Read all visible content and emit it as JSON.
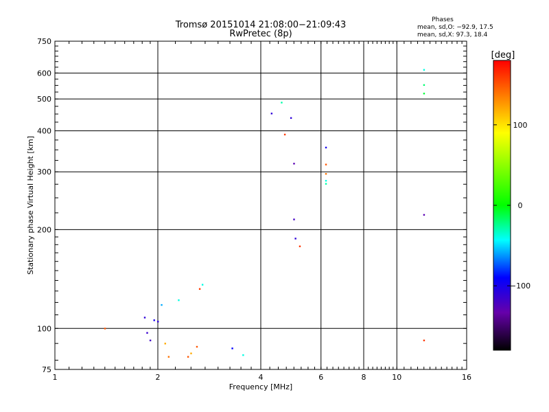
{
  "chart_data": {
    "type": "scatter",
    "title": "Tromsø 20151014 21:08:00−21:09:43",
    "subtitle": "RwPretec (8p)",
    "xlabel": "Frequency [MHz]",
    "ylabel": "Stationary phase Virtual Height [km]",
    "x_scale": "log",
    "y_scale": "log",
    "xlim": [
      1,
      16
    ],
    "ylim": [
      75,
      750
    ],
    "x_ticks": [
      "1",
      "2",
      "4",
      "6",
      "8",
      "10",
      "16"
    ],
    "y_ticks": [
      "75",
      "100",
      "200",
      "300",
      "400",
      "500",
      "600",
      "750"
    ],
    "grid": true,
    "stats_title": "Phases",
    "stats": [
      "mean, sd,O: −92.9, 17.5",
      "mean, sd,X:  97.3, 18.4"
    ],
    "colorbar": {
      "label": "[deg]",
      "range": [
        -180,
        180
      ],
      "ticks": [
        "100",
        "0",
        "−100"
      ],
      "tick_values": [
        100,
        0,
        -100
      ]
    },
    "points": [
      [
        1.83,
        108,
        -110
      ],
      [
        1.86,
        97,
        -115
      ],
      [
        1.9,
        92,
        -120
      ],
      [
        1.95,
        106,
        -100
      ],
      [
        2.0,
        105,
        -110
      ],
      [
        2.05,
        118,
        -60
      ],
      [
        2.1,
        90,
        120
      ],
      [
        2.15,
        82,
        140
      ],
      [
        2.3,
        122,
        -40
      ],
      [
        2.45,
        82,
        150
      ],
      [
        2.5,
        84,
        120
      ],
      [
        2.6,
        88,
        150
      ],
      [
        2.65,
        132,
        160
      ],
      [
        2.7,
        136,
        -40
      ],
      [
        3.3,
        87,
        -90
      ],
      [
        3.55,
        83,
        -40
      ],
      [
        1.4,
        100,
        150
      ],
      [
        4.3,
        452,
        -110
      ],
      [
        4.6,
        488,
        -30
      ],
      [
        4.7,
        390,
        160
      ],
      [
        4.9,
        438,
        -110
      ],
      [
        5.0,
        318,
        -130
      ],
      [
        5.0,
        215,
        -120
      ],
      [
        5.05,
        188,
        -110
      ],
      [
        5.2,
        178,
        160
      ],
      [
        6.2,
        356,
        -100
      ],
      [
        6.2,
        316,
        150
      ],
      [
        6.2,
        296,
        140
      ],
      [
        6.2,
        282,
        -40
      ],
      [
        6.2,
        276,
        -30
      ],
      [
        12.0,
        614,
        -40
      ],
      [
        12.0,
        552,
        -20
      ],
      [
        12.0,
        520,
        -10
      ],
      [
        12.0,
        222,
        -130
      ],
      [
        12.0,
        92,
        160
      ]
    ]
  }
}
